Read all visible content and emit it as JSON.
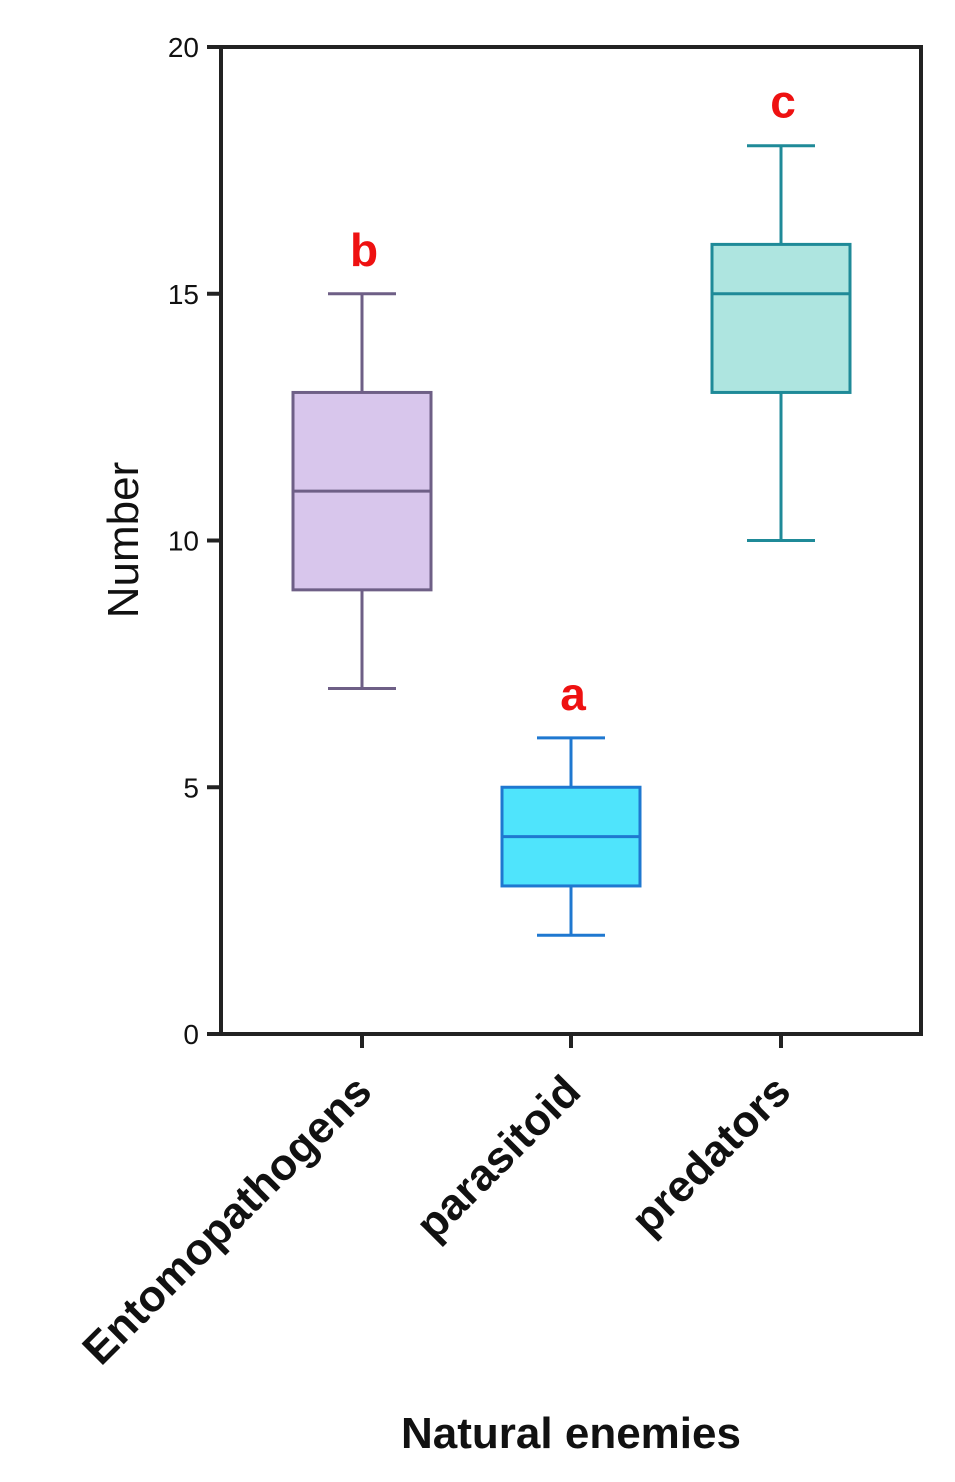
{
  "chart_data": {
    "type": "box",
    "title": "",
    "xlabel": "Natural enemies",
    "ylabel": "Number",
    "ylim": [
      0,
      20
    ],
    "yticks": [
      0,
      5,
      10,
      15,
      20
    ],
    "grid": false,
    "categories": [
      "Entomopathogens",
      "parasitoid",
      "predators"
    ],
    "boxes": [
      {
        "category": "Entomopathogens",
        "min": 7,
        "q1": 9,
        "median": 11,
        "q3": 13,
        "max": 15,
        "significance": "b",
        "fill": "#d8c6ec",
        "stroke": "#6e5f86"
      },
      {
        "category": "parasitoid",
        "min": 2,
        "q1": 3,
        "median": 4,
        "q3": 5,
        "max": 6,
        "significance": "a",
        "fill": "#4fe4fc",
        "stroke": "#1f78d0"
      },
      {
        "category": "predators",
        "min": 10,
        "q1": 13,
        "median": 15,
        "q3": 16,
        "max": 18,
        "significance": "c",
        "fill": "#aee5e0",
        "stroke": "#1f8a98"
      }
    ]
  }
}
